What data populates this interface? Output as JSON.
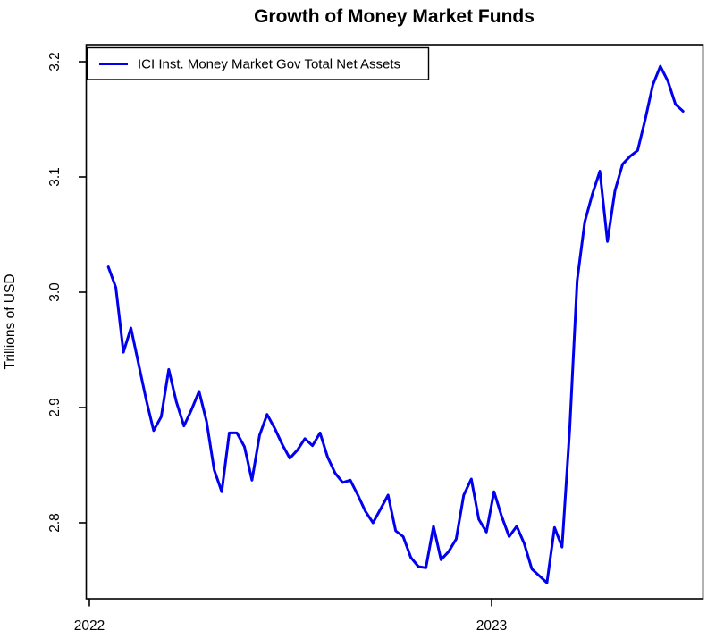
{
  "chart_data": {
    "type": "line",
    "title": "Growth of Money Market Funds",
    "xlabel": "",
    "ylabel": "Trillions of USD",
    "x_tick_labels": [
      "2022",
      "2023"
    ],
    "x_ticks_years": [
      2022,
      2023
    ],
    "y_tick_labels": [
      "2.8",
      "2.9",
      "3.0",
      "3.1",
      "3.2"
    ],
    "y_ticks": [
      2.8,
      2.9,
      3.0,
      3.1,
      3.2
    ],
    "ylim": [
      2.73,
      3.21
    ],
    "grid": false,
    "legend_position": "topleft",
    "x_frequency": "weekly",
    "x_range_years": [
      2022.047,
      2023.476
    ],
    "series": [
      {
        "name": "ICI Inst. Money Market Gov Total Net Assets",
        "color": "#0000EE",
        "values": [
          3.022,
          3.004,
          2.948,
          2.969,
          2.938,
          2.907,
          2.88,
          2.892,
          2.933,
          2.905,
          2.884,
          2.898,
          2.914,
          2.888,
          2.846,
          2.827,
          2.878,
          2.878,
          2.866,
          2.837,
          2.876,
          2.894,
          2.882,
          2.868,
          2.856,
          2.863,
          2.873,
          2.867,
          2.878,
          2.857,
          2.843,
          2.835,
          2.837,
          2.824,
          2.81,
          2.8,
          2.812,
          2.824,
          2.793,
          2.788,
          2.77,
          2.762,
          2.761,
          2.797,
          2.768,
          2.775,
          2.786,
          2.824,
          2.838,
          2.803,
          2.792,
          2.827,
          2.806,
          2.788,
          2.797,
          2.782,
          2.76,
          2.754,
          2.748,
          2.796,
          2.779,
          2.88,
          3.01,
          3.061,
          3.085,
          3.105,
          3.044,
          3.088,
          3.111,
          3.118,
          3.123,
          3.15,
          3.18,
          3.196,
          3.183,
          3.163,
          3.157
        ]
      }
    ]
  },
  "colors": {
    "line": "#0000EE",
    "axis": "#000000",
    "background": "#FFFFFF"
  }
}
